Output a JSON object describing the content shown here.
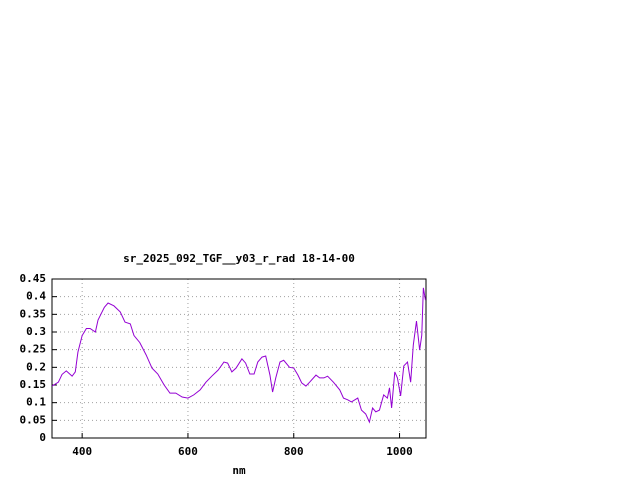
{
  "chart_data": {
    "type": "line",
    "title": "sr_2025_092_TGF__y03_r_rad 18-14-00",
    "x_label": "nm",
    "x": [
      343,
      355,
      362,
      370,
      381,
      387,
      392,
      400,
      408,
      415,
      425,
      430,
      442,
      449,
      460,
      472,
      481,
      491,
      498,
      509,
      521,
      532,
      543,
      555,
      566,
      577,
      589,
      600,
      611,
      623,
      634,
      645,
      657,
      668,
      675,
      683,
      691,
      702,
      709,
      717,
      725,
      732,
      740,
      747,
      755,
      760,
      766,
      774,
      781,
      792,
      800,
      808,
      815,
      823,
      830,
      842,
      849,
      857,
      864,
      875,
      887,
      894,
      902,
      909,
      921,
      928,
      936,
      943,
      949,
      955,
      962,
      970,
      977,
      981,
      985,
      991,
      996,
      1002,
      1008,
      1015,
      1021,
      1026,
      1032,
      1038,
      1042,
      1045,
      1049
    ],
    "values": [
      0.147,
      0.158,
      0.18,
      0.19,
      0.175,
      0.187,
      0.243,
      0.29,
      0.31,
      0.31,
      0.3,
      0.334,
      0.37,
      0.382,
      0.374,
      0.357,
      0.328,
      0.323,
      0.29,
      0.27,
      0.235,
      0.198,
      0.181,
      0.15,
      0.127,
      0.127,
      0.116,
      0.113,
      0.122,
      0.136,
      0.158,
      0.175,
      0.192,
      0.215,
      0.212,
      0.187,
      0.198,
      0.224,
      0.212,
      0.181,
      0.181,
      0.215,
      0.229,
      0.232,
      0.178,
      0.13,
      0.17,
      0.215,
      0.22,
      0.2,
      0.198,
      0.178,
      0.156,
      0.147,
      0.158,
      0.178,
      0.17,
      0.17,
      0.175,
      0.158,
      0.136,
      0.113,
      0.108,
      0.102,
      0.113,
      0.079,
      0.068,
      0.045,
      0.085,
      0.074,
      0.079,
      0.122,
      0.113,
      0.142,
      0.085,
      0.187,
      0.17,
      0.119,
      0.204,
      0.215,
      0.158,
      0.263,
      0.331,
      0.249,
      0.291,
      0.425,
      0.39
    ],
    "color": "#9400d3",
    "xlim": [
      343,
      1050
    ],
    "xticks": [
      400,
      600,
      800,
      1000
    ],
    "ylim": [
      0,
      0.45
    ],
    "yticks": [
      0,
      0.05,
      0.1,
      0.15,
      0.2,
      0.25,
      0.3,
      0.35,
      0.4,
      0.45
    ],
    "grid": true
  }
}
